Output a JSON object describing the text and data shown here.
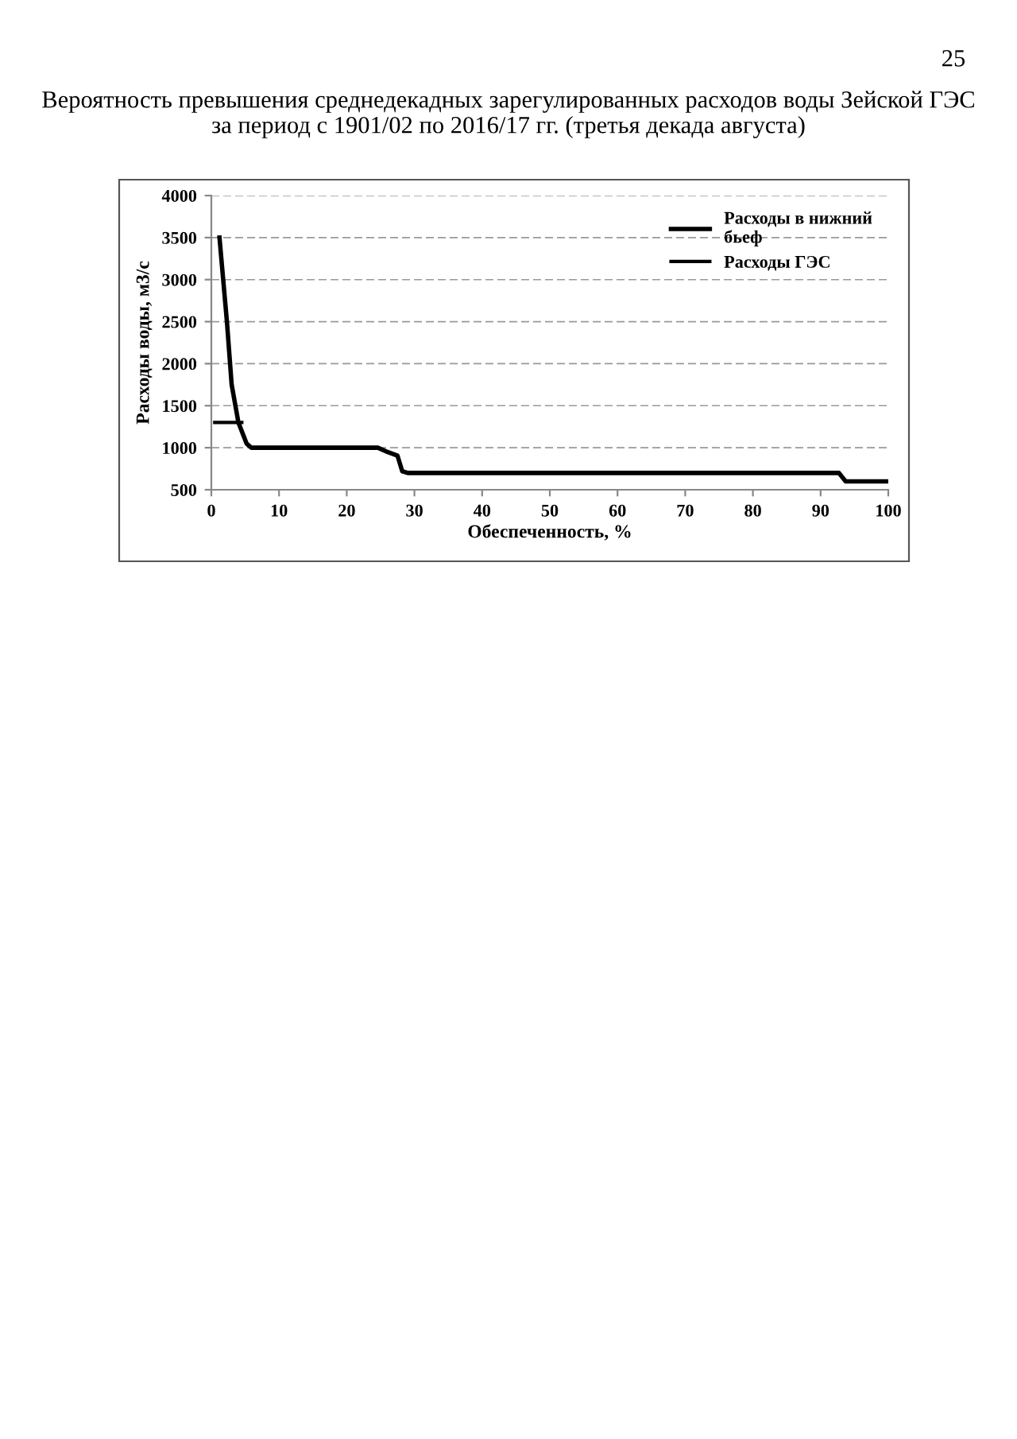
{
  "chart_data": {
    "type": "line",
    "title": "Вероятность превышения среднедекадных зарегулированных расходов воды Зейской ГЭС\nза период с 1901/02 по 2016/17 гг. (третья декада августа)",
    "annotations": [
      "25"
    ],
    "xlabel": "Обеспеченность, %",
    "ylabel": "Расходы воды, м3/с",
    "series": [
      {
        "name": "Расходы в нижний\nбьеф",
        "color": "#000000",
        "x": [
          1.2,
          2.3,
          3.0,
          4.0,
          5.2,
          5.9,
          24.6,
          26,
          27.5,
          28.2,
          29,
          92.7,
          93.7,
          100
        ],
        "values": [
          3500,
          2500,
          1750,
          1300,
          1050,
          1000,
          1000,
          950,
          905,
          720,
          700,
          700,
          600,
          600
        ]
      },
      {
        "name": "Расходы ГЭС",
        "color": "#000000",
        "x": [
          0.5,
          4.5
        ],
        "values": [
          1300,
          1300
        ]
      }
    ],
    "xlim": [
      0,
      100
    ],
    "ylim": [
      500,
      4000
    ],
    "xticks": [
      0,
      10,
      20,
      30,
      40,
      50,
      60,
      70,
      80,
      90,
      100
    ],
    "yticks": [
      500,
      1000,
      1500,
      2000,
      2500,
      3000,
      3500,
      4000
    ],
    "grid": "y",
    "legend": "top right",
    "line_style": "solid",
    "marker": "none"
  }
}
